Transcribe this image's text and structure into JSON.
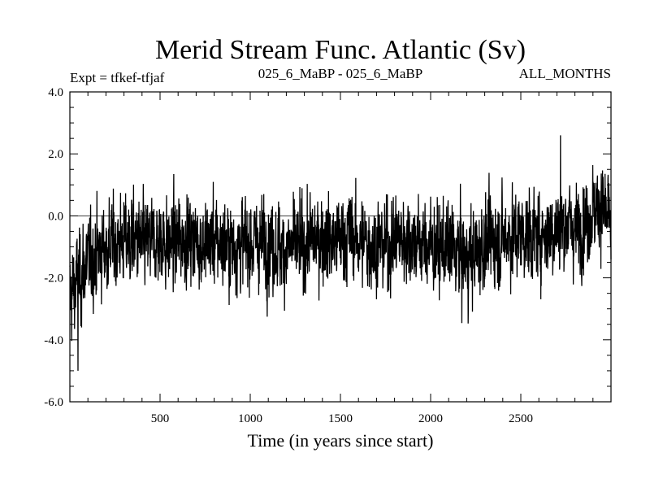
{
  "header": {
    "title": "Merid Stream Func. Atlantic (Sv)",
    "left_note": "Expt = tfkef-tfjaf",
    "center_note": "025_6_MaBP - 025_6_MaBP",
    "right_note": "ALL_MONTHS"
  },
  "chart_data": {
    "type": "line",
    "title": "Merid Stream Func. Atlantic (Sv)",
    "xlabel": "Time (in years since start)",
    "ylabel": "",
    "xlim": [
      0,
      3000
    ],
    "ylim": [
      -6.0,
      4.0
    ],
    "xticks": [
      500,
      1000,
      1500,
      2000,
      2500
    ],
    "xtick_labels": [
      "500",
      "1000",
      "1500",
      "2000",
      "2500"
    ],
    "yticks": [
      -6.0,
      -4.0,
      -2.0,
      0.0,
      2.0,
      4.0
    ],
    "ytick_labels": [
      "-6.0",
      "-4.0",
      "-2.0",
      "0.0",
      "2.0",
      "4.0"
    ],
    "zero_line": true,
    "grid": false,
    "series": [
      {
        "color": "#000000",
        "x": [
          0,
          50,
          100,
          150,
          200,
          250,
          300,
          350,
          400,
          450,
          500,
          550,
          600,
          650,
          700,
          750,
          800,
          850,
          900,
          950,
          1000,
          1050,
          1100,
          1150,
          1200,
          1250,
          1300,
          1350,
          1400,
          1450,
          1500,
          1550,
          1600,
          1650,
          1700,
          1750,
          1800,
          1850,
          1900,
          1950,
          2000,
          2050,
          2100,
          2150,
          2200,
          2250,
          2300,
          2350,
          2400,
          2450,
          2500,
          2550,
          2600,
          2650,
          2700,
          2750,
          2800,
          2850,
          2900,
          2950,
          3000
        ],
        "mean": [
          -2.6,
          -2.0,
          -1.5,
          -1.2,
          -1.0,
          -0.9,
          -0.8,
          -0.8,
          -0.9,
          -0.9,
          -0.8,
          -0.9,
          -0.8,
          -0.7,
          -0.8,
          -0.9,
          -0.8,
          -0.9,
          -1.0,
          -0.9,
          -0.9,
          -0.8,
          -0.9,
          -1.0,
          -1.1,
          -1.0,
          -0.9,
          -0.8,
          -0.7,
          -0.8,
          -0.8,
          -0.6,
          -0.8,
          -0.9,
          -1.0,
          -0.9,
          -0.8,
          -0.7,
          -0.8,
          -0.9,
          -1.0,
          -1.1,
          -1.0,
          -1.2,
          -1.4,
          -1.2,
          -0.9,
          -0.8,
          -0.7,
          -0.6,
          -0.6,
          -0.7,
          -0.6,
          -0.5,
          -0.4,
          -0.3,
          -0.4,
          -0.2,
          0.2,
          0.3,
          -0.4
        ],
        "spread": [
          1.2,
          1.2,
          1.1,
          1.1,
          1.1,
          1.1,
          1.1,
          1.1,
          1.1,
          1.1,
          1.1,
          1.1,
          1.1,
          1.1,
          1.1,
          1.1,
          1.1,
          1.1,
          1.1,
          1.1,
          1.1,
          1.1,
          1.1,
          1.1,
          1.1,
          1.1,
          1.1,
          1.1,
          1.1,
          1.1,
          1.1,
          1.1,
          1.1,
          1.1,
          1.1,
          1.1,
          1.1,
          1.1,
          1.1,
          1.1,
          1.1,
          1.1,
          1.1,
          1.2,
          1.2,
          1.2,
          1.1,
          1.1,
          1.1,
          1.1,
          1.1,
          1.1,
          1.1,
          1.1,
          1.1,
          1.1,
          1.1,
          1.1,
          1.1,
          1.1,
          1.1
        ],
        "min": -5.0,
        "max": 2.6
      }
    ]
  }
}
